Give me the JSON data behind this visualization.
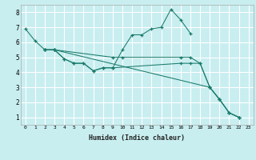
{
  "xlabel": "Humidex (Indice chaleur)",
  "xlim": [
    -0.5,
    23.5
  ],
  "ylim": [
    0.5,
    8.5
  ],
  "bg_color": "#c8eef0",
  "line_color": "#1a7a6a",
  "grid_color": "#ffffff",
  "yticks": [
    1,
    2,
    3,
    4,
    5,
    6,
    7,
    8
  ],
  "xticks": [
    0,
    1,
    2,
    3,
    4,
    5,
    6,
    7,
    8,
    9,
    10,
    11,
    12,
    13,
    14,
    15,
    16,
    17,
    18,
    19,
    20,
    21,
    22,
    23
  ],
  "line1_x": [
    0,
    1,
    2,
    3,
    4,
    5,
    6,
    7,
    8,
    9,
    10,
    11,
    12,
    13,
    14,
    15,
    16,
    17
  ],
  "line1_y": [
    6.9,
    6.1,
    5.5,
    5.5,
    4.9,
    4.6,
    4.6,
    4.1,
    4.3,
    4.3,
    5.5,
    6.5,
    6.5,
    6.9,
    7.0,
    8.2,
    7.5,
    6.6
  ],
  "line2_x": [
    2,
    3,
    4,
    5,
    6,
    7,
    8,
    9,
    10,
    11,
    14,
    15,
    16,
    18,
    19,
    20,
    21,
    22
  ],
  "line2_y": [
    5.5,
    5.5,
    4.9,
    4.6,
    4.6,
    4.1,
    4.1,
    4.3,
    5.0,
    5.0,
    5.0,
    8.2,
    4.6,
    4.6,
    3.0,
    2.2,
    1.3,
    1.0
  ],
  "line3_x": [
    2,
    3,
    10,
    11,
    18,
    19,
    20,
    21,
    22
  ],
  "line3_y": [
    5.5,
    5.5,
    5.0,
    5.0,
    4.6,
    3.0,
    2.2,
    1.3,
    1.0
  ],
  "line4_x": [
    2,
    3,
    19,
    20,
    21,
    22
  ],
  "line4_y": [
    5.5,
    5.5,
    3.0,
    2.2,
    1.3,
    1.0
  ],
  "series": [
    {
      "x": [
        0,
        1,
        2,
        3,
        4,
        5,
        6,
        7,
        8,
        9,
        10,
        11,
        12,
        13,
        14,
        15,
        16,
        17
      ],
      "y": [
        6.9,
        6.1,
        5.5,
        5.5,
        4.9,
        4.6,
        4.6,
        4.1,
        4.3,
        4.3,
        5.5,
        6.5,
        6.5,
        6.9,
        7.0,
        8.2,
        7.5,
        6.6
      ]
    },
    {
      "x": [
        2,
        3,
        4,
        5,
        6,
        7,
        8,
        9,
        16,
        17,
        18,
        19,
        20,
        21,
        22
      ],
      "y": [
        5.5,
        5.5,
        4.9,
        4.6,
        4.6,
        4.1,
        4.3,
        4.3,
        4.6,
        4.6,
        4.6,
        3.0,
        2.2,
        1.3,
        1.0
      ]
    },
    {
      "x": [
        2,
        3,
        9,
        10,
        16,
        17,
        18,
        19,
        20,
        21,
        22
      ],
      "y": [
        5.5,
        5.5,
        5.0,
        5.0,
        5.0,
        5.0,
        4.6,
        3.0,
        2.2,
        1.3,
        1.0
      ]
    },
    {
      "x": [
        2,
        3,
        16,
        17,
        19,
        20,
        21,
        22
      ],
      "y": [
        5.5,
        5.5,
        5.0,
        5.0,
        3.0,
        2.2,
        1.3,
        1.0
      ]
    }
  ]
}
